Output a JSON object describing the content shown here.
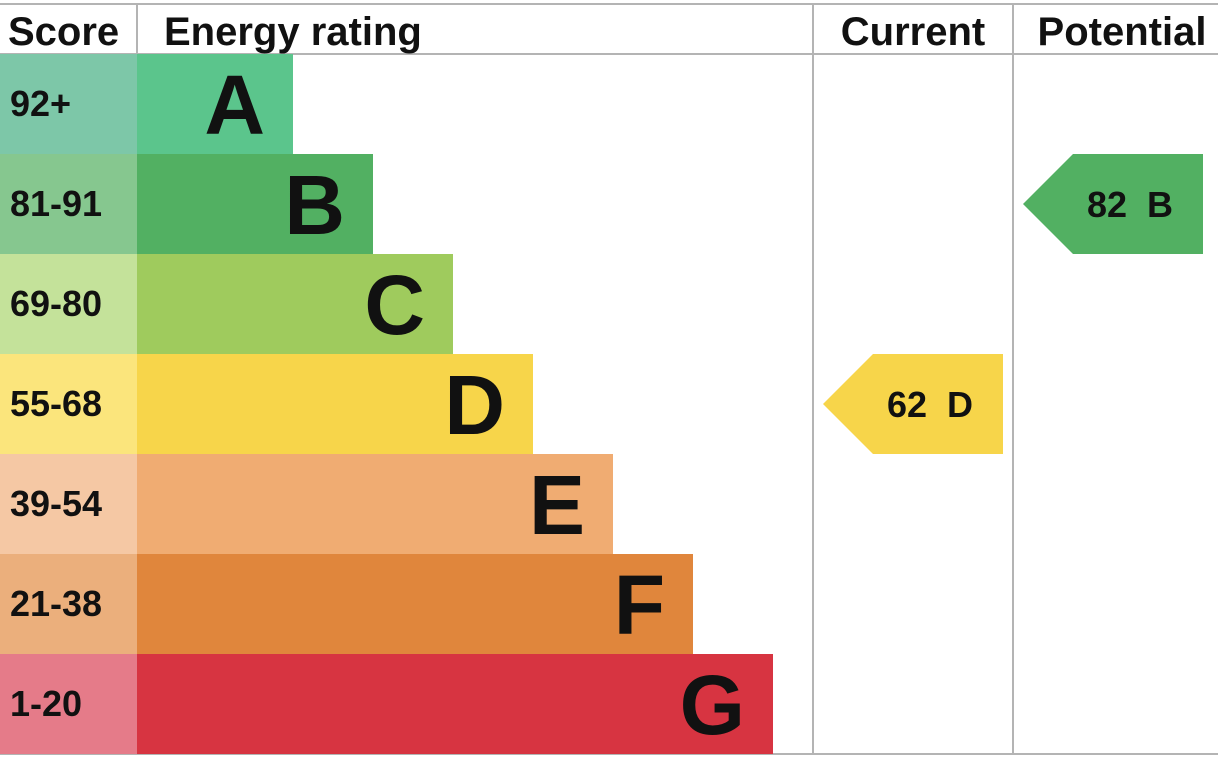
{
  "header": {
    "score": "Score",
    "rating": "Energy rating",
    "current": "Current",
    "potential": "Potential"
  },
  "chart_data": {
    "type": "bar",
    "categories": [
      "A",
      "B",
      "C",
      "D",
      "E",
      "F",
      "G"
    ],
    "bands": [
      {
        "letter": "A",
        "range": "92+",
        "color": "#5bc58c",
        "range_color": "#7dc7a8",
        "step": 1
      },
      {
        "letter": "B",
        "range": "81-91",
        "color": "#52b062",
        "range_color": "#86c78f",
        "step": 2
      },
      {
        "letter": "C",
        "range": "69-80",
        "color": "#9fcb5d",
        "range_color": "#c4e29a",
        "step": 3
      },
      {
        "letter": "D",
        "range": "55-68",
        "color": "#f7d54a",
        "range_color": "#fbe57c",
        "step": 4
      },
      {
        "letter": "E",
        "range": "39-54",
        "color": "#f0ac72",
        "range_color": "#f5c8a4",
        "step": 5
      },
      {
        "letter": "F",
        "range": "21-38",
        "color": "#e0863c",
        "range_color": "#ebaf7c",
        "step": 6
      },
      {
        "letter": "G",
        "range": "1-20",
        "color": "#d73441",
        "range_color": "#e57b89",
        "step": 7
      }
    ],
    "current": {
      "value": 62,
      "band": "D",
      "label": "62  D",
      "color": "#f7d54a"
    },
    "potential": {
      "value": 82,
      "band": "B",
      "label": "82  B",
      "color": "#52b062"
    }
  }
}
